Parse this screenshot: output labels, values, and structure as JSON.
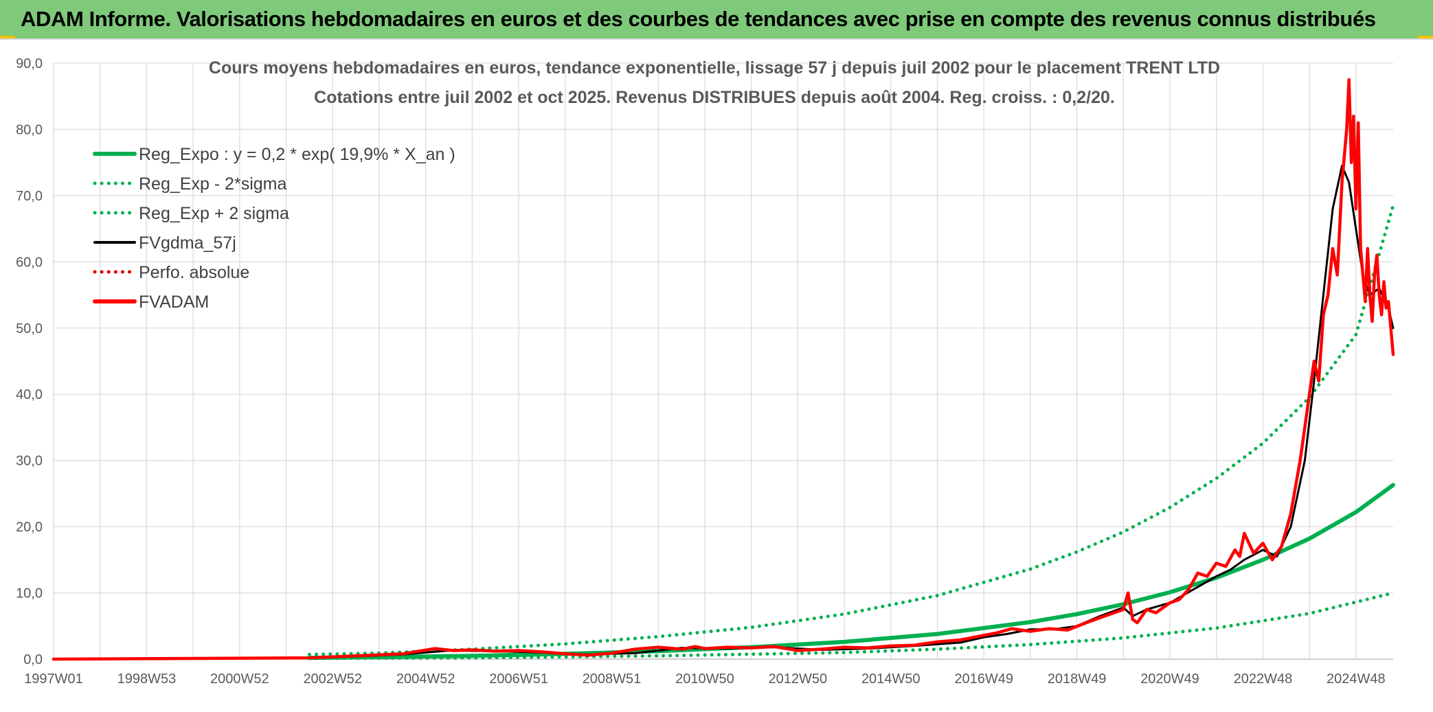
{
  "header": {
    "title": "ADAM Informe. Valorisations hebdomadaires en euros et des courbes de tendances avec prise en compte des revenus connus distribués"
  },
  "colors": {
    "banner": "#7ec97a",
    "trend_green": "#00b050",
    "price_red": "#ff0000",
    "smooth_black": "#000000",
    "perf_red": "#e00000"
  },
  "chart_data": {
    "type": "line",
    "title": "Cours moyens hebdomadaires en euros, tendance exponentielle, lissage 57 j depuis juil 2002 pour le placement TRENT LTD",
    "subtitle": "Cotations entre juil 2002  et oct 2025. Revenus DISTRIBUES depuis août 2004. Reg. croiss. : 0,2/20.",
    "xlabel": "",
    "ylabel": "",
    "xlim": [
      1997.0,
      2025.8
    ],
    "ylim": [
      0,
      90
    ],
    "yticks": [
      "0,0",
      "10,0",
      "20,0",
      "30,0",
      "40,0",
      "50,0",
      "60,0",
      "70,0",
      "80,0",
      "90,0"
    ],
    "ytick_values": [
      0,
      10,
      20,
      30,
      40,
      50,
      60,
      70,
      80,
      90
    ],
    "xticks": [
      {
        "label": "1997W01",
        "x": 1997.0
      },
      {
        "label": "1998W53",
        "x": 1999.0
      },
      {
        "label": "2000W52",
        "x": 2001.0
      },
      {
        "label": "2002W52",
        "x": 2003.0
      },
      {
        "label": "2004W52",
        "x": 2005.0
      },
      {
        "label": "2006W51",
        "x": 2007.0
      },
      {
        "label": "2008W51",
        "x": 2009.0
      },
      {
        "label": "2010W50",
        "x": 2011.0
      },
      {
        "label": "2012W50",
        "x": 2013.0
      },
      {
        "label": "2014W50",
        "x": 2015.0
      },
      {
        "label": "2016W49",
        "x": 2017.0
      },
      {
        "label": "2018W49",
        "x": 2019.0
      },
      {
        "label": "2020W49",
        "x": 2021.0
      },
      {
        "label": "2022W48",
        "x": 2023.0
      },
      {
        "label": "2024W48",
        "x": 2025.0
      }
    ],
    "grid": true,
    "legend_position": "top-left",
    "series": [
      {
        "name": "Reg_Expo : y = 0,2 * exp( 19,9% *  X_an )",
        "style": "solid-thick",
        "color": "#00b050",
        "x": [
          2002.5,
          2004,
          2006,
          2008,
          2010,
          2012,
          2014,
          2016,
          2018,
          2019,
          2020,
          2021,
          2022,
          2023,
          2024,
          2025,
          2025.8
        ],
        "values": [
          0.2,
          0.3,
          0.5,
          0.8,
          1.2,
          1.8,
          2.6,
          3.8,
          5.6,
          6.8,
          8.3,
          10.1,
          12.3,
          15.0,
          18.2,
          22.2,
          26.3
        ]
      },
      {
        "name": "Reg_Exp - 2*sigma",
        "style": "dotted",
        "color": "#00b050",
        "x": [
          2002.5,
          2006,
          2010,
          2014,
          2016,
          2018,
          2020,
          2022,
          2024,
          2025.8
        ],
        "values": [
          0.1,
          0.2,
          0.5,
          1.0,
          1.5,
          2.2,
          3.2,
          4.7,
          6.9,
          10.0
        ]
      },
      {
        "name": "Reg_Exp + 2 sigma",
        "style": "dotted",
        "color": "#00b050",
        "x": [
          2002.5,
          2004,
          2006,
          2008,
          2010,
          2012,
          2014,
          2016,
          2018,
          2019,
          2020,
          2021,
          2022,
          2023,
          2024,
          2025,
          2025.8
        ],
        "values": [
          0.7,
          0.9,
          1.5,
          2.3,
          3.4,
          4.8,
          6.8,
          9.6,
          13.6,
          16.2,
          19.2,
          22.9,
          27.3,
          32.6,
          39.5,
          49.0,
          68.5
        ]
      },
      {
        "name": "FVgdma_57j",
        "style": "solid",
        "color": "#000000",
        "x": [
          1997.0,
          2002.5,
          2003.5,
          2004.5,
          2005.5,
          2006.5,
          2007.5,
          2008.5,
          2009.5,
          2010.5,
          2011.5,
          2012.5,
          2013.5,
          2014.5,
          2015.5,
          2016.5,
          2017.0,
          2017.5,
          2018.0,
          2018.5,
          2019.0,
          2019.5,
          2020.0,
          2020.2,
          2020.5,
          2021.0,
          2021.5,
          2022.0,
          2022.3,
          2022.6,
          2023.0,
          2023.3,
          2023.6,
          2023.9,
          2024.1,
          2024.3,
          2024.5,
          2024.7,
          2024.85,
          2025.0,
          2025.15,
          2025.3,
          2025.5,
          2025.7,
          2025.8
        ],
        "values": [
          0,
          0.2,
          0.4,
          0.7,
          1.3,
          1.2,
          1.0,
          0.7,
          0.9,
          1.7,
          1.6,
          1.8,
          1.4,
          1.6,
          2.0,
          2.5,
          3.3,
          3.8,
          4.5,
          4.5,
          5.0,
          6.5,
          7.8,
          6.5,
          7.5,
          8.5,
          10.5,
          12.5,
          13.5,
          15.0,
          16.5,
          15.5,
          20.0,
          30.0,
          42.0,
          55.0,
          68.0,
          74.5,
          72.0,
          65.0,
          58.0,
          55.0,
          56.0,
          53.0,
          50.0
        ]
      },
      {
        "name": "Perfo. absolue",
        "style": "dotted",
        "color": "#e00000",
        "x": [],
        "values": []
      },
      {
        "name": "FVADAM",
        "style": "solid-thick",
        "color": "#ff0000",
        "x": [
          1997.0,
          2002.5,
          2003.5,
          2004.5,
          2005.2,
          2005.6,
          2006.0,
          2006.5,
          2007.0,
          2007.5,
          2008.0,
          2008.5,
          2009.0,
          2009.5,
          2010.0,
          2010.5,
          2010.8,
          2011.0,
          2011.5,
          2012.0,
          2012.5,
          2013.0,
          2013.5,
          2014.0,
          2014.5,
          2015.0,
          2015.5,
          2016.0,
          2016.5,
          2017.0,
          2017.3,
          2017.6,
          2018.0,
          2018.4,
          2018.8,
          2019.2,
          2019.6,
          2020.0,
          2020.1,
          2020.2,
          2020.3,
          2020.5,
          2020.7,
          2021.0,
          2021.2,
          2021.4,
          2021.6,
          2021.8,
          2022.0,
          2022.2,
          2022.4,
          2022.5,
          2022.6,
          2022.8,
          2023.0,
          2023.2,
          2023.4,
          2023.6,
          2023.8,
          2023.9,
          2024.0,
          2024.1,
          2024.2,
          2024.3,
          2024.4,
          2024.5,
          2024.6,
          2024.7,
          2024.8,
          2024.85,
          2024.9,
          2024.95,
          2025.0,
          2025.05,
          2025.1,
          2025.15,
          2025.2,
          2025.25,
          2025.3,
          2025.35,
          2025.4,
          2025.45,
          2025.5,
          2025.55,
          2025.6,
          2025.65,
          2025.7,
          2025.75,
          2025.8
        ],
        "values": [
          0,
          0.2,
          0.5,
          0.8,
          1.6,
          1.3,
          1.4,
          1.2,
          1.3,
          1.1,
          0.8,
          0.6,
          0.9,
          1.5,
          1.8,
          1.5,
          1.9,
          1.6,
          1.8,
          1.7,
          1.9,
          1.3,
          1.5,
          1.8,
          1.7,
          2.0,
          2.1,
          2.6,
          2.9,
          3.6,
          4.0,
          4.6,
          4.2,
          4.6,
          4.4,
          5.5,
          6.5,
          7.5,
          10.0,
          6.0,
          5.5,
          7.5,
          7.0,
          8.5,
          9.0,
          10.5,
          13.0,
          12.5,
          14.5,
          14.0,
          16.5,
          15.5,
          19.0,
          16.0,
          17.5,
          15.0,
          17.0,
          22.0,
          30.0,
          35.0,
          40.0,
          45.0,
          42.0,
          52.0,
          55.0,
          62.0,
          58.0,
          72.0,
          80.0,
          87.5,
          75.0,
          82.0,
          68.0,
          81.0,
          62.0,
          58.0,
          54.0,
          62.0,
          55.0,
          51.0,
          58.0,
          61.0,
          55.0,
          52.0,
          57.0,
          53.0,
          54.0,
          50.0,
          46.0
        ]
      }
    ]
  }
}
